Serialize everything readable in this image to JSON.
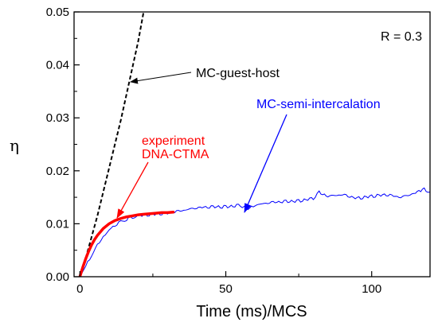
{
  "chart_data": {
    "type": "line",
    "title": "",
    "xlabel": "Time (ms)/MCS",
    "ylabel": "η",
    "xlim": [
      -2,
      120
    ],
    "ylim": [
      0,
      0.05
    ],
    "grid": false,
    "x_ticks": [
      {
        "value": 0,
        "label": "0"
      },
      {
        "value": 50,
        "label": "50"
      },
      {
        "value": 100,
        "label": "100"
      }
    ],
    "y_ticks": [
      {
        "value": 0,
        "label": "0.00"
      },
      {
        "value": 0.01,
        "label": "0.01"
      },
      {
        "value": 0.02,
        "label": "0.02"
      },
      {
        "value": 0.03,
        "label": "0.03"
      },
      {
        "value": 0.04,
        "label": "0.04"
      },
      {
        "value": 0.05,
        "label": "0.05"
      }
    ],
    "parameter_label": "R = 0.3",
    "series": [
      {
        "name": "MC-guest-host",
        "style": "dashed",
        "color": "#000000",
        "x": [
          0,
          2,
          4,
          6,
          8,
          10,
          12,
          14,
          16,
          18,
          20,
          22
        ],
        "y": [
          0,
          0.0035,
          0.0075,
          0.0115,
          0.016,
          0.0205,
          0.025,
          0.0295,
          0.0345,
          0.0395,
          0.0445,
          0.0505
        ]
      },
      {
        "name": "MC-semi-intercalation",
        "style": "solid-noisy",
        "color": "#0000ff",
        "x": [
          0,
          2,
          4,
          6,
          8,
          10,
          12,
          14,
          16,
          18,
          20,
          25,
          30,
          35,
          40,
          45,
          50,
          55,
          57,
          60,
          65,
          70,
          75,
          80,
          82,
          85,
          90,
          95,
          100,
          105,
          110,
          115,
          118,
          120
        ],
        "y": [
          0,
          0.002,
          0.004,
          0.006,
          0.0075,
          0.0088,
          0.0097,
          0.0104,
          0.0108,
          0.0112,
          0.0115,
          0.0118,
          0.012,
          0.0125,
          0.013,
          0.0132,
          0.0132,
          0.0135,
          0.0128,
          0.0135,
          0.014,
          0.0142,
          0.0143,
          0.0148,
          0.016,
          0.0152,
          0.0155,
          0.0148,
          0.0152,
          0.0155,
          0.015,
          0.0158,
          0.0165,
          0.016
        ]
      },
      {
        "name": "experiment DNA-CTMA",
        "style": "solid-thick",
        "color": "#ff0000",
        "x": [
          0,
          1,
          2,
          3,
          4,
          5,
          6,
          8,
          10,
          12,
          14,
          16,
          18,
          20,
          22,
          24,
          26,
          28,
          30,
          32
        ],
        "y": [
          0,
          0.0018,
          0.0034,
          0.0048,
          0.006,
          0.007,
          0.0078,
          0.0091,
          0.01,
          0.0106,
          0.011,
          0.0113,
          0.0115,
          0.0117,
          0.0118,
          0.0119,
          0.012,
          0.0121,
          0.0121,
          0.0122
        ]
      }
    ],
    "annotations": [
      {
        "text": "MC-guest-host",
        "color": "#000000",
        "series": 0
      },
      {
        "text": "MC-semi-intercalation",
        "color": "#0000ff",
        "series": 1
      },
      {
        "text": "experiment",
        "color": "#ff0000",
        "series": 2
      },
      {
        "text": "DNA-CTMA",
        "color": "#ff0000",
        "series": 2
      }
    ]
  }
}
